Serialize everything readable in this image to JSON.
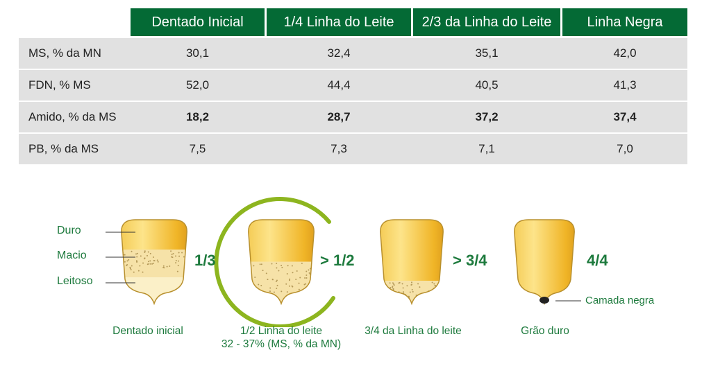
{
  "table": {
    "columns": [
      "Dentado Inicial",
      "1/4 Linha do Leite",
      "2/3 da Linha do Leite",
      "Linha Negra"
    ],
    "rows": [
      {
        "label": "MS, % da MN",
        "values": [
          "30,1",
          "32,4",
          "35,1",
          "42,0"
        ],
        "bold": false
      },
      {
        "label": "FDN, % MS",
        "values": [
          "52,0",
          "44,4",
          "40,5",
          "41,3"
        ],
        "bold": false
      },
      {
        "label": "Amido, % da MS",
        "values": [
          "18,2",
          "28,7",
          "37,2",
          "37,4"
        ],
        "bold": true
      },
      {
        "label": "PB, % da MS",
        "values": [
          "7,5",
          "7,3",
          "7,1",
          "7,0"
        ],
        "bold": false
      }
    ],
    "header_color": "#046a35"
  },
  "diagram": {
    "layer_labels": [
      "Duro",
      "Macio",
      "Leitoso"
    ],
    "kernels": [
      {
        "fraction": "1/3",
        "caption": "Dentado inicial",
        "subcaption": ""
      },
      {
        "fraction": "> 1/2",
        "caption": "1/2 Linha do leite",
        "subcaption": "32 - 37% (MS, % da MN)"
      },
      {
        "fraction": "> 3/4",
        "caption": "3/4 da Linha do leite",
        "subcaption": ""
      },
      {
        "fraction": "4/4",
        "caption": "Grão duro",
        "subcaption": ""
      }
    ],
    "black_layer_label": "Camada negra",
    "text_color": "#1d7a3d",
    "ring_color": "#8db51f"
  }
}
